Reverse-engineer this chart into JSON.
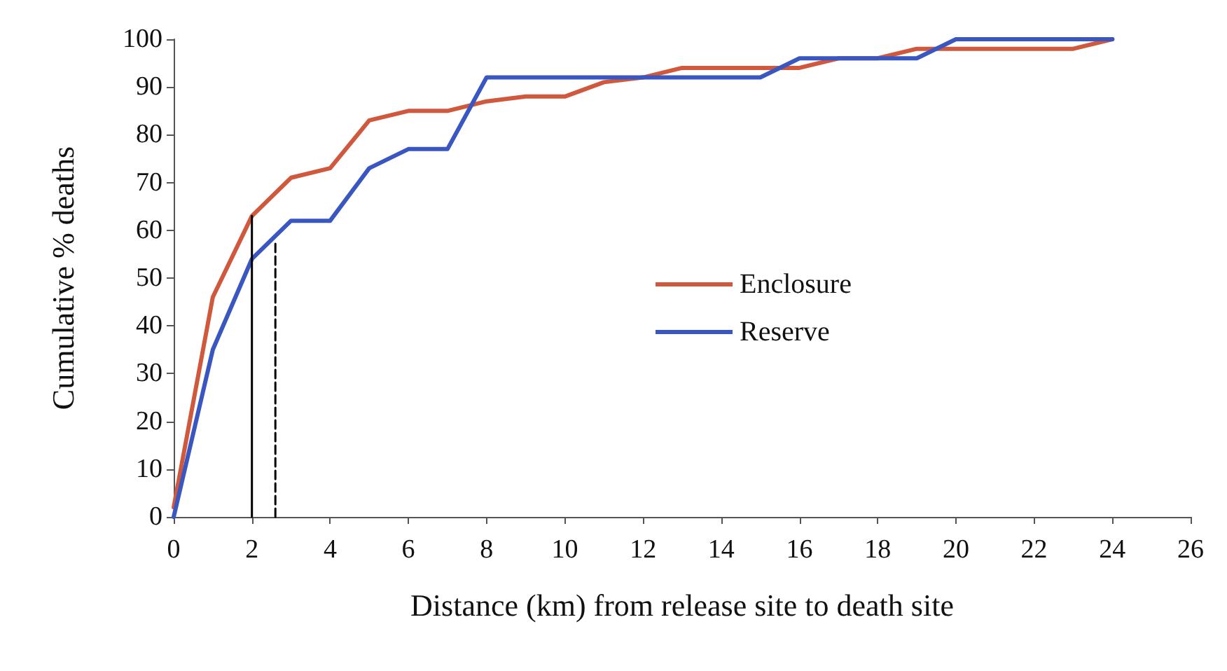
{
  "chart_data": {
    "type": "line",
    "xlabel": "Distance (km) from release site to death site",
    "ylabel": "Cumulative % deaths",
    "xlim": [
      0,
      26
    ],
    "xticks": [
      0,
      2,
      4,
      6,
      8,
      10,
      12,
      14,
      16,
      18,
      20,
      22,
      24,
      26
    ],
    "ylim": [
      0,
      100
    ],
    "yticks": [
      0,
      10,
      20,
      30,
      40,
      50,
      60,
      70,
      80,
      90,
      100
    ],
    "grid": false,
    "legend": "right",
    "marker": "none",
    "line_style": "solid",
    "series": [
      {
        "name": "Enclosure",
        "color": "#d0583c",
        "x": [
          0,
          1,
          2,
          3,
          4,
          5,
          6,
          7,
          8,
          9,
          10,
          11,
          12,
          13,
          14,
          15,
          16,
          17,
          18,
          19,
          20,
          21,
          22,
          23,
          24
        ],
        "values": [
          2,
          46,
          63,
          71,
          73,
          83,
          85,
          85,
          87,
          88,
          88,
          91,
          92,
          94,
          94,
          94,
          94,
          96,
          96,
          98,
          98,
          98,
          98,
          98,
          100
        ]
      },
      {
        "name": "Reserve",
        "color": "#3a56c0",
        "x": [
          0,
          1,
          2,
          3,
          4,
          5,
          6,
          7,
          8,
          9,
          10,
          11,
          12,
          13,
          14,
          15,
          16,
          17,
          18,
          19,
          20,
          21,
          22,
          23,
          24
        ],
        "values": [
          0,
          35,
          54,
          62,
          62,
          73,
          77,
          77,
          92,
          92,
          92,
          92,
          92,
          92,
          92,
          92,
          96,
          96,
          96,
          96,
          100,
          100,
          100,
          100,
          100
        ]
      },
      {
        "color": "#000000",
        "x": [
          2,
          2
        ],
        "values": [
          0,
          63
        ],
        "line_style": "solid"
      },
      {
        "color": "#000000",
        "x": [
          2.6,
          2.6
        ],
        "values": [
          0,
          58
        ],
        "line_style": "dashed"
      }
    ]
  }
}
